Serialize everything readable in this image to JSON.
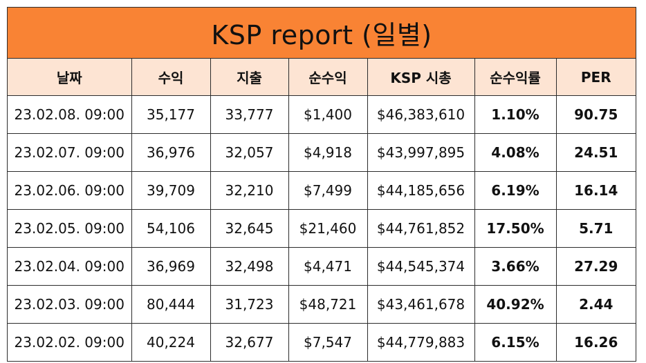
{
  "report": {
    "title": "KSP report (일별)",
    "header_colors": {
      "title_bg": "#f98334",
      "header_bg": "#fde4d3"
    },
    "columns": [
      "날짜",
      "수익",
      "지출",
      "순수익",
      "KSP 시총",
      "순수익률",
      "PER"
    ],
    "rows": [
      [
        "23.02.08. 09:00",
        "35,177",
        "33,777",
        "$1,400",
        "$46,383,610",
        "1.10%",
        "90.75"
      ],
      [
        "23.02.07. 09:00",
        "36,976",
        "32,057",
        "$4,918",
        "$43,997,895",
        "4.08%",
        "24.51"
      ],
      [
        "23.02.06. 09:00",
        "39,709",
        "32,210",
        "$7,499",
        "$44,185,656",
        "6.19%",
        "16.14"
      ],
      [
        "23.02.05. 09:00",
        "54,106",
        "32,645",
        "$21,460",
        "$44,761,852",
        "17.50%",
        "5.71"
      ],
      [
        "23.02.04. 09:00",
        "36,969",
        "32,498",
        "$4,471",
        "$44,545,374",
        "3.66%",
        "27.29"
      ],
      [
        "23.02.03. 09:00",
        "80,444",
        "31,723",
        "$48,721",
        "$43,461,678",
        "40.92%",
        "2.44"
      ],
      [
        "23.02.02. 09:00",
        "40,224",
        "32,677",
        "$7,547",
        "$44,779,883",
        "6.15%",
        "16.26"
      ]
    ]
  }
}
